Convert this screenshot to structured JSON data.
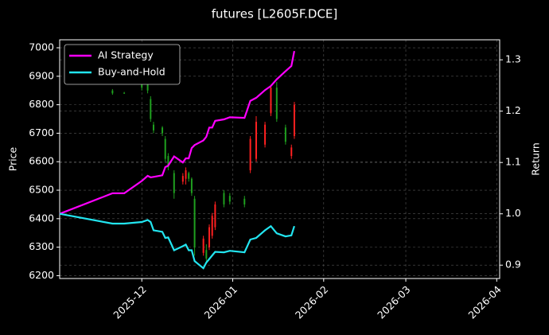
{
  "chart_data": {
    "type": "candlestick",
    "title": "futures [L2605F.DCE]",
    "ylabel": "Price",
    "y2label": "Return",
    "x": [
      "2025-11-03",
      "2025-11-21",
      "2025-11-25",
      "2025-12-01",
      "2025-12-03",
      "2025-12-04",
      "2025-12-05",
      "2025-12-08",
      "2025-12-09",
      "2025-12-10",
      "2025-12-12",
      "2025-12-15",
      "2025-12-16",
      "2025-12-17",
      "2025-12-18",
      "2025-12-19",
      "2025-12-22",
      "2025-12-23",
      "2025-12-24",
      "2025-12-25",
      "2025-12-26",
      "2025-12-29",
      "2025-12-31",
      "2026-01-05",
      "2026-01-07",
      "2026-01-09",
      "2026-01-12",
      "2026-01-14",
      "2026-01-16",
      "2026-01-19",
      "2026-01-21",
      "2026-01-22"
    ],
    "ohlc": {
      "open": [
        null,
        6850,
        6842,
        6890,
        6880,
        6820,
        6730,
        6720,
        6680,
        6620,
        6560,
        6530,
        6540,
        6560,
        6540,
        6470,
        6280,
        6290,
        6300,
        6340,
        6370,
        6490,
        6480,
        6470,
        6570,
        6610,
        6660,
        6770,
        6860,
        6720,
        6620,
        6690
      ],
      "high": [
        null,
        6855,
        6845,
        6900,
        6890,
        6830,
        6740,
        6725,
        6690,
        6630,
        6570,
        6560,
        6580,
        6565,
        6545,
        6480,
        6340,
        6310,
        6380,
        6420,
        6460,
        6500,
        6490,
        6480,
        6690,
        6760,
        6740,
        6870,
        6880,
        6730,
        6660,
        6810
      ],
      "low": [
        null,
        6835,
        6838,
        6850,
        6840,
        6740,
        6700,
        6690,
        6600,
        6570,
        6470,
        6520,
        6520,
        6530,
        6480,
        6270,
        6270,
        6250,
        6290,
        6330,
        6360,
        6440,
        6450,
        6440,
        6560,
        6600,
        6650,
        6760,
        6740,
        6660,
        6610,
        6680
      ],
      "close": [
        null,
        6840,
        6840,
        6860,
        6850,
        6750,
        6710,
        6700,
        6610,
        6580,
        6490,
        6550,
        6570,
        6540,
        6490,
        6300,
        6330,
        6260,
        6370,
        6410,
        6450,
        6450,
        6460,
        6450,
        6680,
        6740,
        6730,
        6860,
        6750,
        6670,
        6650,
        6800
      ],
      "up_color": "#ff2020",
      "down_color": "#1fa01f"
    },
    "series": [
      {
        "name": "AI Strategy",
        "color": "#ff00ff",
        "axis": "y2",
        "values": [
          1.0,
          1.04,
          1.04,
          1.064,
          1.074,
          1.071,
          1.072,
          1.075,
          1.091,
          1.094,
          1.112,
          1.1,
          1.108,
          1.108,
          1.128,
          1.134,
          1.143,
          1.15,
          1.168,
          1.168,
          1.181,
          1.184,
          1.188,
          1.187,
          1.22,
          1.226,
          1.241,
          1.249,
          1.262,
          1.278,
          1.288,
          1.317
        ]
      },
      {
        "name": "Buy-and-Hold",
        "color": "#22e5f0",
        "axis": "y2",
        "values": [
          1.0,
          0.981,
          0.981,
          0.984,
          0.988,
          0.984,
          0.968,
          0.965,
          0.953,
          0.954,
          0.929,
          0.937,
          0.94,
          0.929,
          0.929,
          0.908,
          0.894,
          0.905,
          0.912,
          0.919,
          0.926,
          0.925,
          0.928,
          0.925,
          0.95,
          0.953,
          0.968,
          0.976,
          0.962,
          0.956,
          0.958,
          0.976
        ]
      }
    ],
    "xlim": [
      "2025-11-03",
      "2026-04-02"
    ],
    "xticks": [
      {
        "value": "2025-12-01",
        "label": "2025-12"
      },
      {
        "value": "2026-01-01",
        "label": "2026-01"
      },
      {
        "value": "2026-02-01",
        "label": "2026-02"
      },
      {
        "value": "2026-03-01",
        "label": "2026-03"
      },
      {
        "value": "2026-04-01",
        "label": "2026-04"
      }
    ],
    "ylim": [
      6190,
      7028
    ],
    "yticks": [
      6200,
      6300,
      6400,
      6500,
      6600,
      6700,
      6800,
      6900,
      7000
    ],
    "y2lim": [
      0.874,
      1.339
    ],
    "y2ticks": [
      0.9,
      {
        "value": 1,
        "label": "1.0"
      },
      1.1,
      1.2,
      1.3
    ],
    "grid": true,
    "legend": "upper left"
  }
}
